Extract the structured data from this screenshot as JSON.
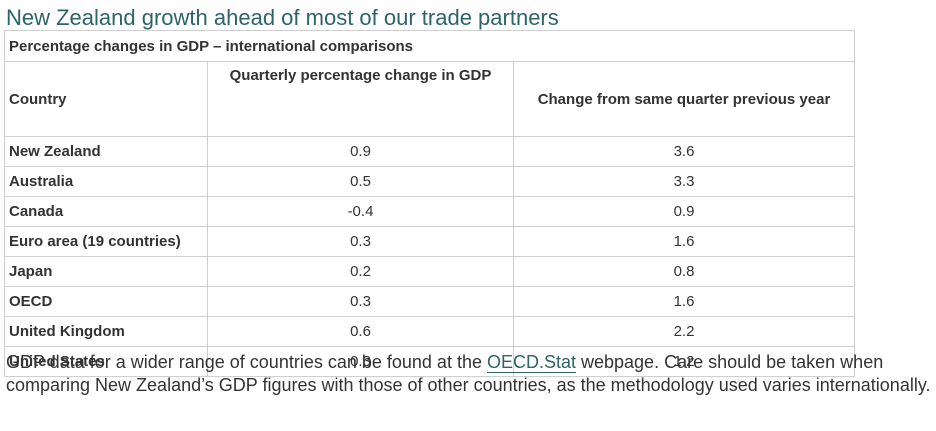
{
  "heading": "New Zealand growth ahead of most of our trade partners",
  "table": {
    "caption": "Percentage changes in GDP – international comparisons",
    "headers": {
      "country": "Country",
      "quarterly": "Quarterly percentage change in GDP",
      "annual": "Change from same quarter previous year"
    },
    "rows": [
      {
        "country": "New Zealand",
        "quarterly": "0.9",
        "annual": "3.6"
      },
      {
        "country": "Australia",
        "quarterly": "0.5",
        "annual": "3.3"
      },
      {
        "country": "Canada",
        "quarterly": "-0.4",
        "annual": "0.9"
      },
      {
        "country": "Euro area (19 countries)",
        "quarterly": "0.3",
        "annual": "1.6"
      },
      {
        "country": "Japan",
        "quarterly": "0.2",
        "annual": "0.8"
      },
      {
        "country": "OECD",
        "quarterly": "0.3",
        "annual": "1.6"
      },
      {
        "country": "United Kingdom",
        "quarterly": "0.6",
        "annual": "2.2"
      },
      {
        "country": "United States",
        "quarterly": "0.3",
        "annual": "1.2"
      }
    ]
  },
  "footnote": {
    "before_link": "GDP data for a wider range of countries can be found at the ",
    "link_text": "OECD.Stat",
    "after_link": " webpage. Care should be taken when comparing New Zealand’s GDP figures with those of other countries, as the methodology used varies internationally."
  },
  "colors": {
    "heading": "#2d6468",
    "link": "#2d6468",
    "text": "#333333",
    "border": "#cfcfcf"
  }
}
